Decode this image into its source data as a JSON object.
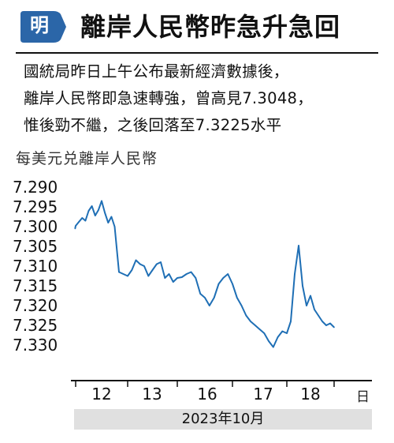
{
  "header": {
    "logo_text": "明",
    "title": "離岸人民幣昨急升急回"
  },
  "description": [
    "國統局昨日上午公布最新經濟數據後，",
    "離岸人民幣即急速轉強，曾高見7.3048，",
    "惟後勁不繼，之後回落至7.3225水平"
  ],
  "colors": {
    "line": "#1f6fb5",
    "logo": "#2b66a8",
    "axis": "#111111",
    "date_bar": "#e0e0e0"
  },
  "chart_data": {
    "type": "line",
    "title": "",
    "ylabel": "每美元兑離岸人民幣",
    "ylim": [
      7.333,
      7.289
    ],
    "y_axis_inverted": true,
    "yticks": [
      "7.290",
      "7.295",
      "7.300",
      "7.305",
      "7.310",
      "7.315",
      "7.320",
      "7.325",
      "7.330"
    ],
    "xticks": [
      "12",
      "13",
      "16",
      "17",
      "18"
    ],
    "x_unit": "日",
    "x_period": "2023年10月",
    "grid": false,
    "legend": "none",
    "series": [
      {
        "x": [
          "10/11 22:00",
          "10/12 00:00",
          "10/12 01:30",
          "10/12 03:00",
          "10/12 04:30",
          "10/12 06:00",
          "10/12 07:30",
          "10/12 09:00",
          "10/12 10:30",
          "10/12 12:00",
          "10/12 13:30",
          "10/12 15:00",
          "10/12 16:30",
          "10/12 18:00",
          "10/12 20:00",
          "10/12 22:00",
          "10/13 00:00",
          "10/13 02:00",
          "10/13 04:00",
          "10/13 06:00",
          "10/13 08:00",
          "10/13 10:00",
          "10/13 12:00",
          "10/13 14:00",
          "10/13 16:00",
          "10/13 18:00",
          "10/13 20:00",
          "10/13 22:00",
          "10/16 00:00",
          "10/16 02:00",
          "10/16 04:00",
          "10/16 06:00",
          "10/16 08:00",
          "10/16 10:00",
          "10/16 12:00",
          "10/16 14:00",
          "10/16 16:00",
          "10/16 18:00",
          "10/16 20:00",
          "10/16 22:00",
          "10/17 00:00",
          "10/17 02:00",
          "10/17 04:00",
          "10/17 06:00",
          "10/17 08:00",
          "10/17 10:00",
          "10/17 12:00",
          "10/17 14:00",
          "10/17 16:00",
          "10/17 18:00",
          "10/17 20:00",
          "10/17 22:00",
          "10/18 00:00",
          "10/18 02:00",
          "10/18 04:00",
          "10/18 06:00",
          "10/18 08:00",
          "10/18 10:00",
          "10/18 12:00",
          "10/18 14:00",
          "10/18 16:00",
          "10/18 18:00",
          "10/18 20:00",
          "10/18 22:00",
          "10/19 00:00"
        ],
        "values": [
          7.3005,
          7.2998,
          7.2988,
          7.2978,
          7.2985,
          7.296,
          7.2948,
          7.2972,
          7.2958,
          7.2935,
          7.2965,
          7.299,
          7.2975,
          7.3,
          7.3115,
          7.312,
          7.3125,
          7.311,
          7.3085,
          7.3095,
          7.31,
          7.3125,
          7.311,
          7.3095,
          7.309,
          7.313,
          7.312,
          7.314,
          7.313,
          7.3128,
          7.312,
          7.3115,
          7.313,
          7.317,
          7.318,
          7.32,
          7.318,
          7.3145,
          7.313,
          7.312,
          7.3145,
          7.318,
          7.32,
          7.3225,
          7.324,
          7.325,
          7.326,
          7.327,
          7.329,
          7.3305,
          7.328,
          7.3265,
          7.327,
          7.324,
          7.312,
          7.3048,
          7.315,
          7.32,
          7.3175,
          7.321,
          7.3225,
          7.324,
          7.325,
          7.3245,
          7.3255
        ]
      }
    ]
  }
}
